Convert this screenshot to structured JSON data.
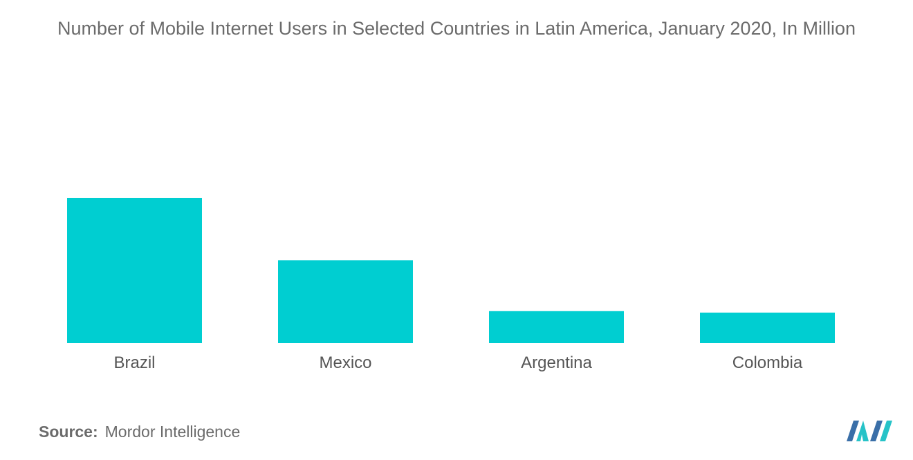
{
  "chart_data": {
    "type": "bar",
    "title": "Number of Mobile Internet Users in Selected Countries in Latin America, January 2020, In Million",
    "categories": [
      "Brazil",
      "Mexico",
      "Argentina",
      "Colombia"
    ],
    "values": [
      100,
      57,
      22,
      21
    ],
    "xlabel": "",
    "ylabel": "",
    "ylim": [
      0,
      100
    ],
    "grid": false,
    "bar_color": "#00CED1"
  },
  "source": {
    "label": "Source:",
    "text": "Mordor Intelligence"
  },
  "logo": {
    "icon": "mordor-intelligence-logo",
    "colors": [
      "#3a6fa8",
      "#27c3c8"
    ]
  }
}
